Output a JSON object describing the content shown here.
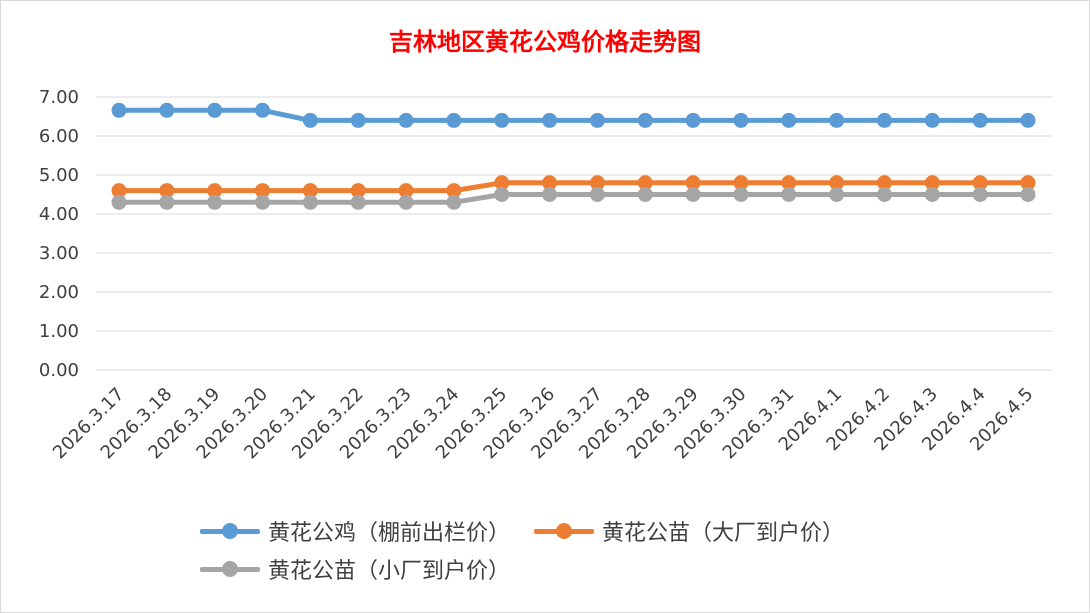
{
  "chart_data": {
    "type": "line",
    "title": "吉林地区黄花公鸡价格走势图",
    "xlabel": "",
    "ylabel": "",
    "ylim": [
      0,
      7
    ],
    "ytick_step": 1,
    "yticks": [
      "0.00",
      "1.00",
      "2.00",
      "3.00",
      "4.00",
      "5.00",
      "6.00",
      "7.00"
    ],
    "grid": true,
    "legend_position": "bottom",
    "categories": [
      "2026.3.17",
      "2026.3.18",
      "2026.3.19",
      "2026.3.20",
      "2026.3.21",
      "2026.3.22",
      "2026.3.23",
      "2026.3.24",
      "2026.3.25",
      "2026.3.26",
      "2026.3.27",
      "2026.3.28",
      "2026.3.29",
      "2026.3.30",
      "2026.3.31",
      "2026.4.1",
      "2026.4.2",
      "2026.4.3",
      "2026.4.4",
      "2026.4.5"
    ],
    "series": [
      {
        "name": "黄花公鸡（棚前出栏价）",
        "color": "#5b9bd5",
        "values": [
          6.66,
          6.66,
          6.66,
          6.66,
          6.4,
          6.4,
          6.4,
          6.4,
          6.4,
          6.4,
          6.4,
          6.4,
          6.4,
          6.4,
          6.4,
          6.4,
          6.4,
          6.4,
          6.4,
          6.4
        ]
      },
      {
        "name": "黄花公苗（大厂到户价）",
        "color": "#ed7d31",
        "values": [
          4.6,
          4.6,
          4.6,
          4.6,
          4.6,
          4.6,
          4.6,
          4.6,
          4.8,
          4.8,
          4.8,
          4.8,
          4.8,
          4.8,
          4.8,
          4.8,
          4.8,
          4.8,
          4.8,
          4.8
        ]
      },
      {
        "name": "黄花公苗（小厂到户价）",
        "color": "#a5a5a5",
        "values": [
          4.3,
          4.3,
          4.3,
          4.3,
          4.3,
          4.3,
          4.3,
          4.3,
          4.5,
          4.5,
          4.5,
          4.5,
          4.5,
          4.5,
          4.5,
          4.5,
          4.5,
          4.5,
          4.5,
          4.5
        ]
      }
    ]
  }
}
